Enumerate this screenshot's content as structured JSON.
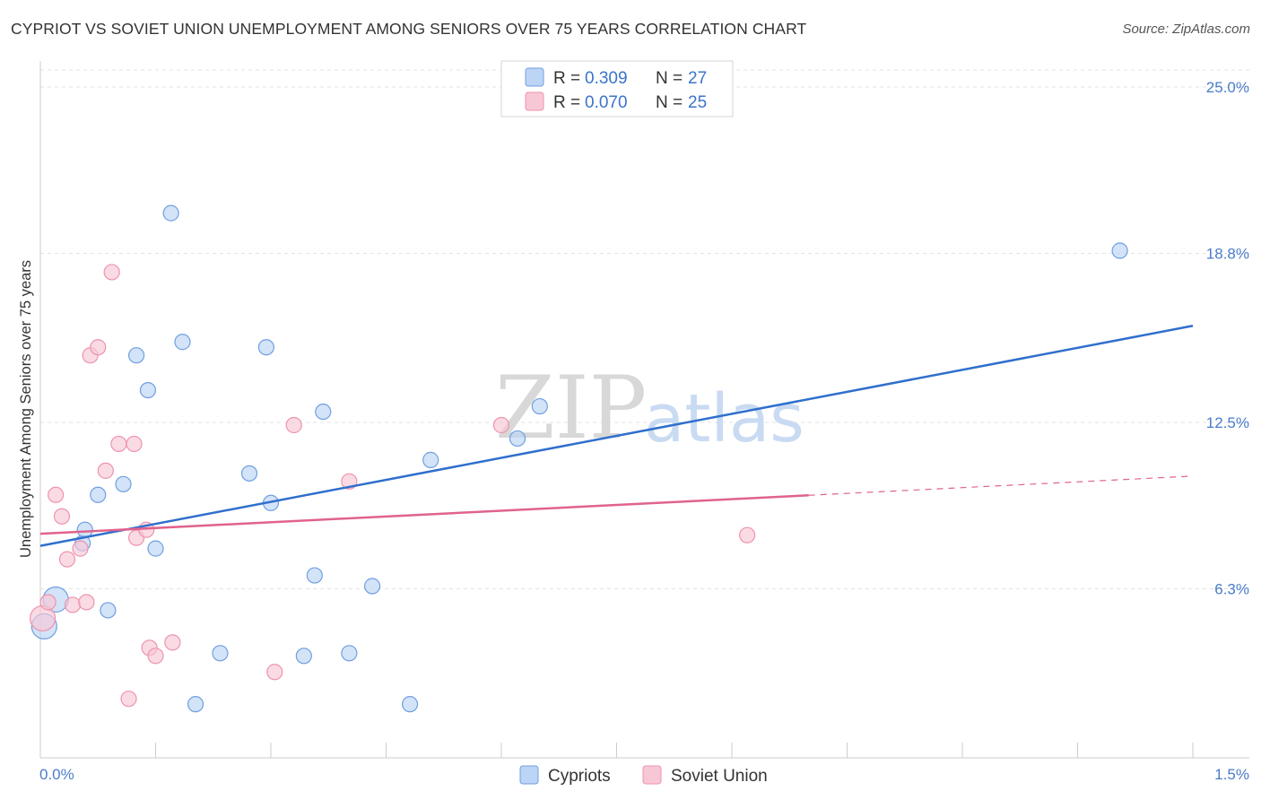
{
  "header": {
    "title": "CYPRIOT VS SOVIET UNION UNEMPLOYMENT AMONG SENIORS OVER 75 YEARS CORRELATION CHART",
    "source": "Source: ZipAtlas.com"
  },
  "watermark": {
    "zip": "ZIP",
    "atlas": "atlas"
  },
  "chart_data": {
    "type": "scatter",
    "title": "CYPRIOT VS SOVIET UNION UNEMPLOYMENT AMONG SENIORS OVER 75 YEARS CORRELATION CHART",
    "xlabel": "",
    "ylabel": "Unemployment Among Seniors over 75 years",
    "xlim": [
      0.0,
      1.5
    ],
    "ylim": [
      0.0,
      25.0
    ],
    "x_tick_labels": {
      "min": "0.0%",
      "max": "1.5%"
    },
    "y_ticks": [
      {
        "value": 6.3,
        "label": "6.3%"
      },
      {
        "value": 12.5,
        "label": "12.5%"
      },
      {
        "value": 18.8,
        "label": "18.8%"
      },
      {
        "value": 25.0,
        "label": "25.0%"
      }
    ],
    "legend_position": "top-center",
    "legend": [
      {
        "name": "Cypriots",
        "r_label": "R = ",
        "r_value": "0.309",
        "n_label": "N = ",
        "n_value": "27"
      },
      {
        "name": "Soviet Union",
        "r_label": "R = ",
        "r_value": "0.070",
        "n_label": "N = ",
        "n_value": "25"
      }
    ],
    "series": [
      {
        "name": "Cypriots",
        "color": "#6f9fe0",
        "fill": "#bcd4f5",
        "line_color": "#2f6fcc",
        "trend": {
          "x0": 0.0,
          "y0": 7.9,
          "x1": 1.5,
          "y1": 16.1,
          "dashed_from": null
        },
        "points": [
          {
            "x": 0.005,
            "y": 4.9,
            "big": true
          },
          {
            "x": 0.02,
            "y": 5.9,
            "big": true
          },
          {
            "x": 0.055,
            "y": 8.0
          },
          {
            "x": 0.058,
            "y": 8.5
          },
          {
            "x": 0.075,
            "y": 9.8
          },
          {
            "x": 0.088,
            "y": 5.5
          },
          {
            "x": 0.108,
            "y": 10.2
          },
          {
            "x": 0.125,
            "y": 15.0
          },
          {
            "x": 0.14,
            "y": 13.7
          },
          {
            "x": 0.15,
            "y": 7.8
          },
          {
            "x": 0.17,
            "y": 20.3
          },
          {
            "x": 0.185,
            "y": 15.5
          },
          {
            "x": 0.202,
            "y": 2.0
          },
          {
            "x": 0.234,
            "y": 3.9
          },
          {
            "x": 0.272,
            "y": 10.6
          },
          {
            "x": 0.294,
            "y": 15.3
          },
          {
            "x": 0.3,
            "y": 9.5
          },
          {
            "x": 0.343,
            "y": 3.8
          },
          {
            "x": 0.357,
            "y": 6.8
          },
          {
            "x": 0.368,
            "y": 12.9
          },
          {
            "x": 0.402,
            "y": 3.9
          },
          {
            "x": 0.432,
            "y": 6.4
          },
          {
            "x": 0.481,
            "y": 2.0
          },
          {
            "x": 0.508,
            "y": 11.1
          },
          {
            "x": 0.621,
            "y": 11.9
          },
          {
            "x": 0.65,
            "y": 13.1
          },
          {
            "x": 1.405,
            "y": 18.9
          }
        ]
      },
      {
        "name": "Soviet Union",
        "color": "#ee93ad",
        "fill": "#f8c7d6",
        "line_color": "#e0638c",
        "trend": {
          "x0": 0.0,
          "y0": 8.35,
          "x1": 1.5,
          "y1": 10.5,
          "dashed_from": 1.0
        },
        "points": [
          {
            "x": 0.003,
            "y": 5.2,
            "big": true
          },
          {
            "x": 0.01,
            "y": 5.8
          },
          {
            "x": 0.02,
            "y": 9.8
          },
          {
            "x": 0.028,
            "y": 9.0
          },
          {
            "x": 0.035,
            "y": 7.4
          },
          {
            "x": 0.042,
            "y": 5.7
          },
          {
            "x": 0.052,
            "y": 7.8
          },
          {
            "x": 0.06,
            "y": 5.8
          },
          {
            "x": 0.065,
            "y": 15.0
          },
          {
            "x": 0.075,
            "y": 15.3
          },
          {
            "x": 0.085,
            "y": 10.7
          },
          {
            "x": 0.093,
            "y": 18.1
          },
          {
            "x": 0.102,
            "y": 11.7
          },
          {
            "x": 0.115,
            "y": 2.2
          },
          {
            "x": 0.122,
            "y": 11.7
          },
          {
            "x": 0.125,
            "y": 8.2
          },
          {
            "x": 0.138,
            "y": 8.5
          },
          {
            "x": 0.142,
            "y": 4.1
          },
          {
            "x": 0.15,
            "y": 3.8
          },
          {
            "x": 0.172,
            "y": 4.3
          },
          {
            "x": 0.305,
            "y": 3.2
          },
          {
            "x": 0.33,
            "y": 12.4
          },
          {
            "x": 0.402,
            "y": 10.3
          },
          {
            "x": 0.6,
            "y": 12.4
          },
          {
            "x": 0.92,
            "y": 8.3
          }
        ]
      }
    ]
  }
}
